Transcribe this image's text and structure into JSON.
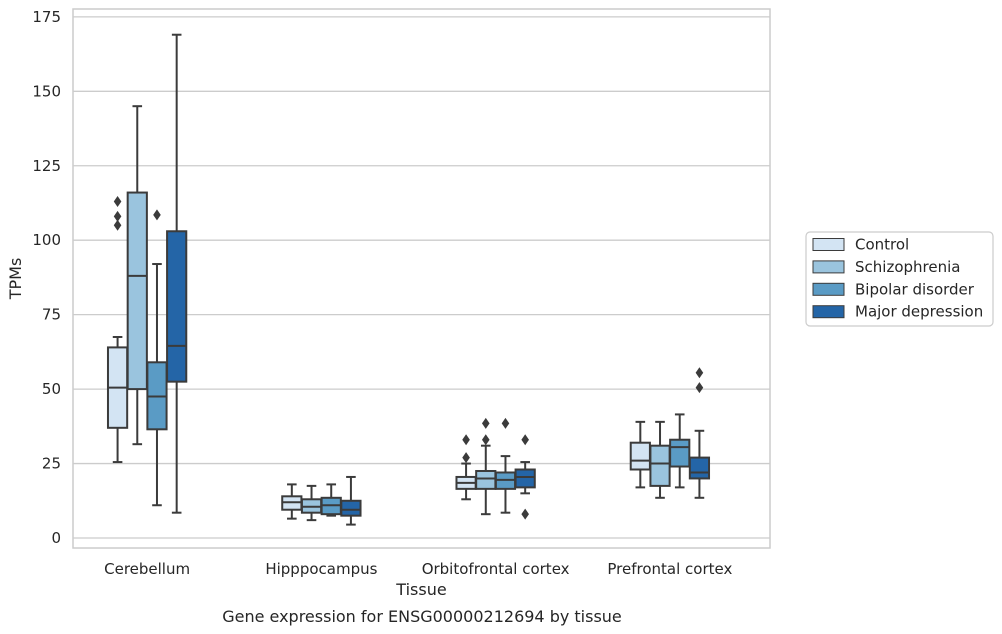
{
  "caption": "Gene expression for ENSG00000212694 by tissue",
  "chart_data": {
    "type": "box",
    "xlabel": "Tissue",
    "ylabel": "TPMs",
    "ylim": [
      -3,
      178
    ],
    "yticks": [
      0,
      25,
      50,
      75,
      100,
      125,
      150,
      175
    ],
    "grid": "horizontal",
    "legend_position": "right",
    "categories": [
      "Cerebellum",
      "Hipppocampus",
      "Orbitofrontal cortex",
      "Prefrontal cortex"
    ],
    "series": [
      {
        "name": "Control",
        "color": "#d3e4f3",
        "boxes": [
          {
            "whislo": 25.5,
            "q1": 37,
            "med": 50.5,
            "q3": 64,
            "whishi": 67.5,
            "fliers": [
              105,
              108,
              113
            ]
          },
          {
            "whislo": 6.5,
            "q1": 9.5,
            "med": 12,
            "q3": 14,
            "whishi": 18,
            "fliers": []
          },
          {
            "whislo": 13,
            "q1": 16.5,
            "med": 18.5,
            "q3": 20.5,
            "whishi": 25,
            "fliers": [
              27,
              33
            ]
          },
          {
            "whislo": 17,
            "q1": 23,
            "med": 26,
            "q3": 32,
            "whishi": 39,
            "fliers": []
          }
        ]
      },
      {
        "name": "Schizophrenia",
        "color": "#9ac4de",
        "boxes": [
          {
            "whislo": 31.5,
            "q1": 50,
            "med": 88,
            "q3": 116,
            "whishi": 145,
            "fliers": []
          },
          {
            "whislo": 6,
            "q1": 8.5,
            "med": 10.5,
            "q3": 13,
            "whishi": 17.5,
            "fliers": []
          },
          {
            "whislo": 8,
            "q1": 16.5,
            "med": 20,
            "q3": 22.5,
            "whishi": 31,
            "fliers": [
              33,
              38.5
            ]
          },
          {
            "whislo": 13.5,
            "q1": 17.5,
            "med": 25,
            "q3": 31,
            "whishi": 39,
            "fliers": []
          }
        ]
      },
      {
        "name": "Bipolar disorder",
        "color": "#5a9bc5",
        "boxes": [
          {
            "whislo": 11,
            "q1": 36.5,
            "med": 47.5,
            "q3": 59,
            "whishi": 92,
            "fliers": [
              108.5
            ]
          },
          {
            "whislo": 7.5,
            "q1": 8,
            "med": 11,
            "q3": 13.5,
            "whishi": 18,
            "fliers": []
          },
          {
            "whislo": 8.5,
            "q1": 16.5,
            "med": 19.5,
            "q3": 22,
            "whishi": 27.5,
            "fliers": [
              38.5
            ]
          },
          {
            "whislo": 17,
            "q1": 24,
            "med": 30.5,
            "q3": 33,
            "whishi": 41.5,
            "fliers": []
          }
        ]
      },
      {
        "name": "Major depression",
        "color": "#2465a7",
        "boxes": [
          {
            "whislo": 8.5,
            "q1": 52.5,
            "med": 64.5,
            "q3": 103,
            "whishi": 169,
            "fliers": []
          },
          {
            "whislo": 4.5,
            "q1": 7.5,
            "med": 9.5,
            "q3": 12.5,
            "whishi": 20.5,
            "fliers": []
          },
          {
            "whislo": 15,
            "q1": 17,
            "med": 20.5,
            "q3": 23,
            "whishi": 25.5,
            "fliers": [
              33,
              8
            ]
          },
          {
            "whislo": 13.5,
            "q1": 20,
            "med": 22,
            "q3": 27,
            "whishi": 36,
            "fliers": [
              50.5,
              55.5
            ]
          }
        ]
      }
    ]
  }
}
